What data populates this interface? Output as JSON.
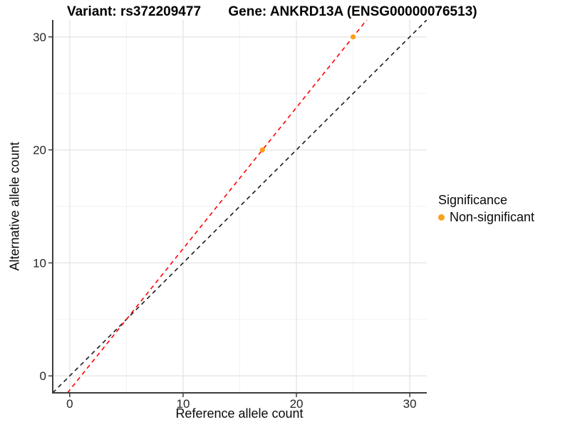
{
  "header": {
    "variant_title": "Variant: rs372209477",
    "gene_title": "Gene: ANKRD13A (ENSG00000076513)"
  },
  "chart_data": {
    "type": "scatter",
    "xlabel": "Reference allele count",
    "ylabel": "Alternative allele count",
    "xlim": [
      -1.5,
      31.5
    ],
    "ylim": [
      -1.5,
      31.5
    ],
    "x_ticks": [
      0,
      10,
      20,
      30
    ],
    "y_ticks": [
      0,
      10,
      20,
      30
    ],
    "x_minor_ticks": [
      5,
      15,
      25
    ],
    "y_minor_ticks": [
      5,
      15,
      25
    ],
    "grid": true,
    "points": [
      {
        "x": 17,
        "y": 20,
        "series": "Non-significant"
      },
      {
        "x": 25,
        "y": 30,
        "series": "Non-significant"
      }
    ],
    "point_color": "#FAA01A",
    "lines": [
      {
        "name": "identity-line",
        "slope": 1,
        "intercept": 0,
        "color": "#1A1A1A",
        "dash": "6,5"
      },
      {
        "name": "allelic-ratio-line",
        "slope": 1.25,
        "intercept": -1.25,
        "color": "#FF0000",
        "dash": "6,5"
      }
    ],
    "legend": {
      "title": "Significance",
      "position": "right",
      "items": [
        {
          "label": "Non-significant",
          "color": "#FAA01A"
        }
      ]
    },
    "colors": {
      "grid_major": "#E7E7E7",
      "grid_minor": "#F2F2F2",
      "axis_line": "#3D3D3D",
      "tick_text": "#262626"
    }
  }
}
